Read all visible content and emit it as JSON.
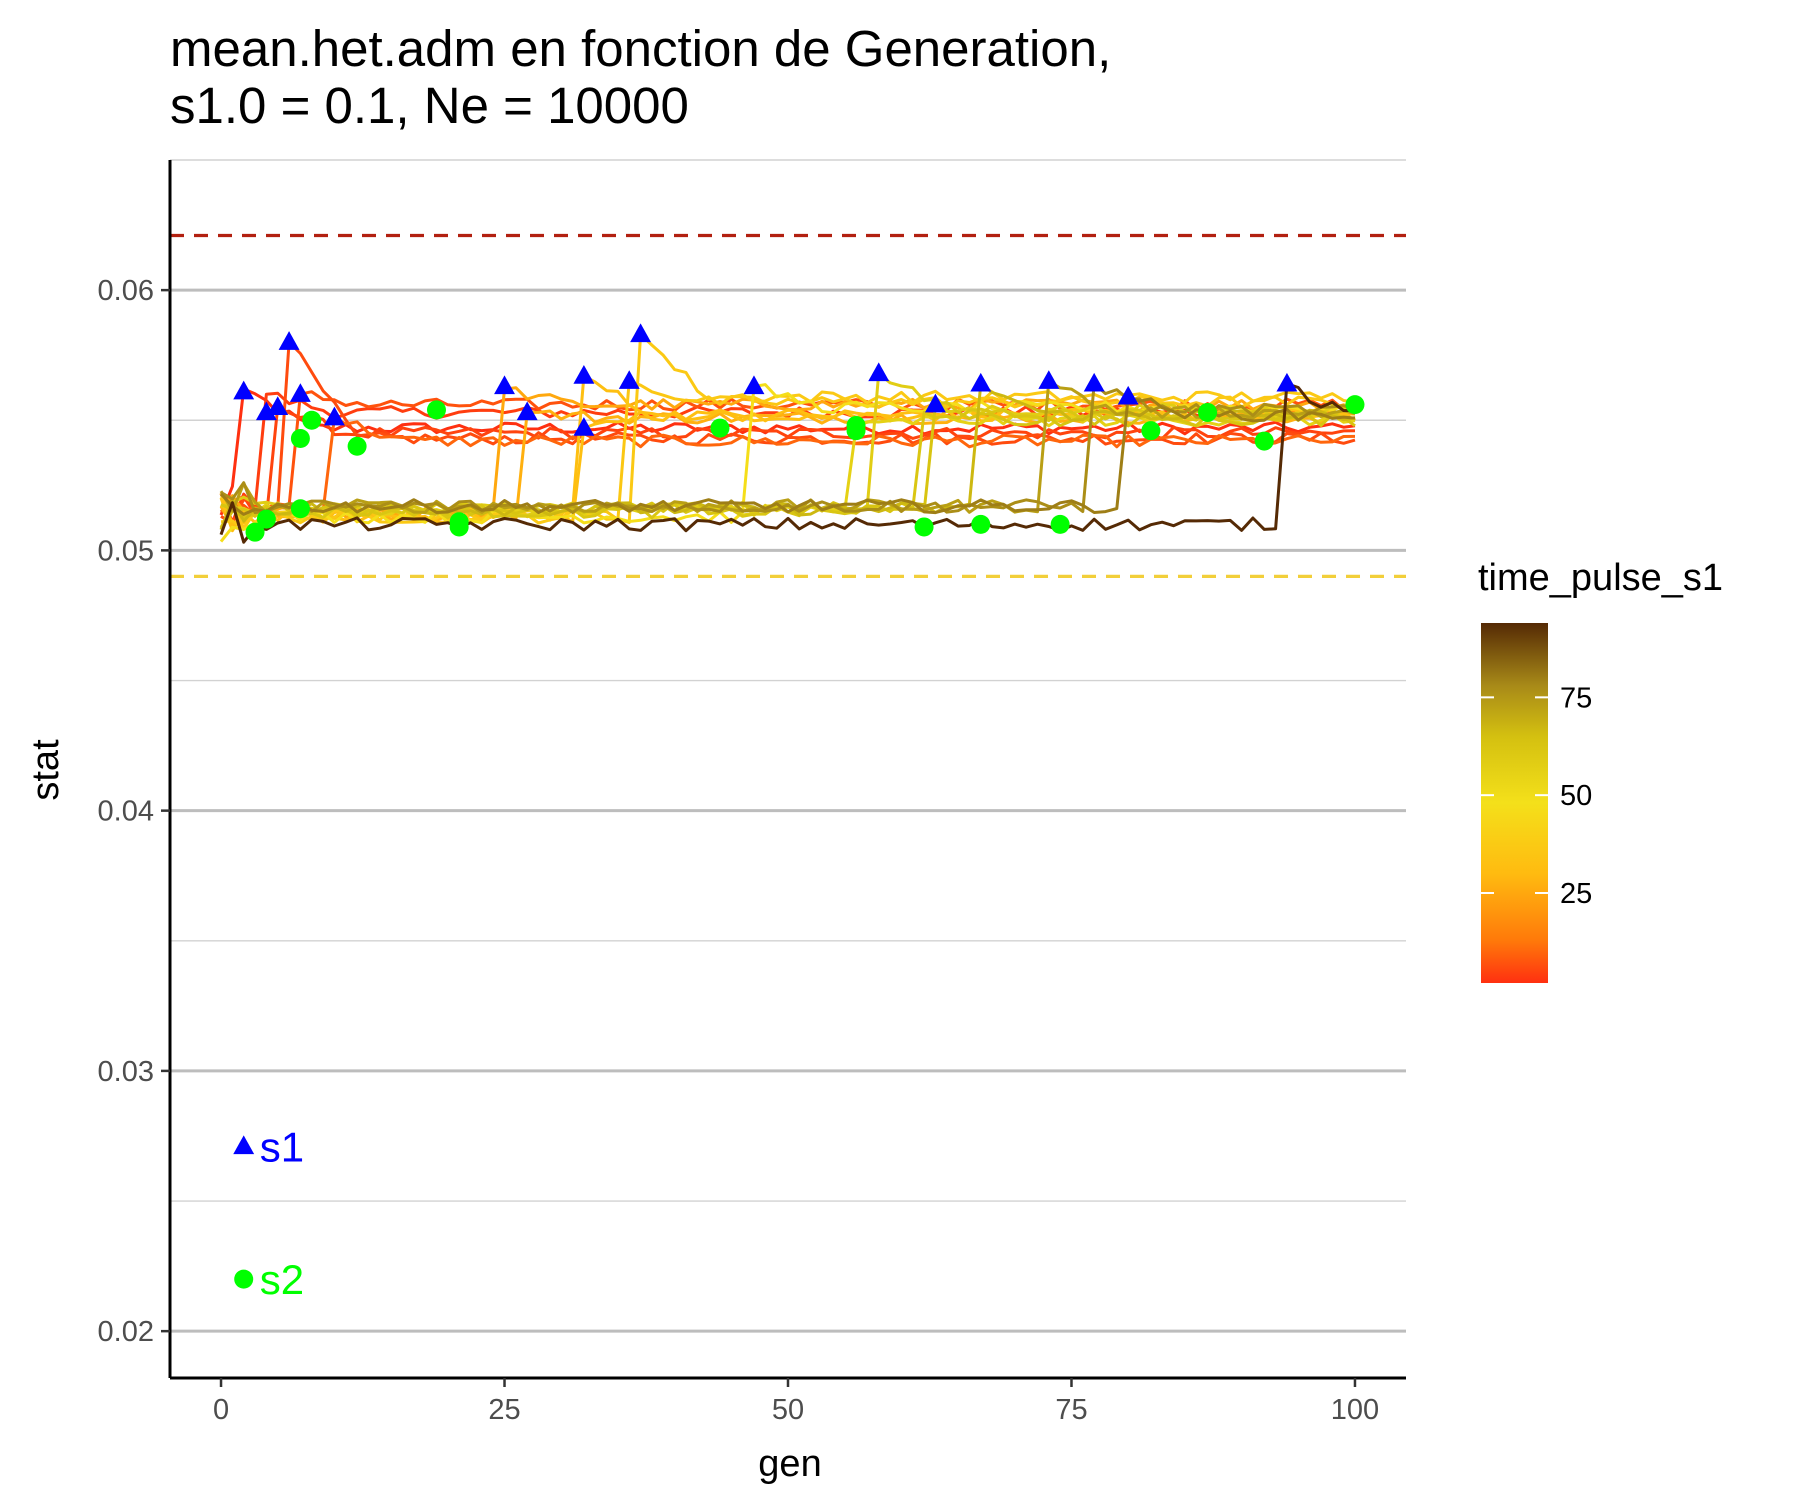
{
  "chart_data": {
    "type": "line",
    "title_lines": [
      "mean.het.adm en fonction de Generation,",
      "s1.0 = 0.1, Ne = 10000"
    ],
    "xlabel": "gen",
    "ylabel": "stat",
    "xlim": [
      -4.5,
      104.5
    ],
    "ylim": [
      0.0182,
      0.065
    ],
    "x_ticks": [
      0,
      25,
      50,
      75,
      100
    ],
    "x_tick_labels": [
      "0",
      "25",
      "50",
      "75",
      "100"
    ],
    "y_ticks": [
      0.02,
      0.03,
      0.04,
      0.05,
      0.06
    ],
    "y_tick_labels": [
      "0.02",
      "0.03",
      "0.04",
      "0.05",
      "0.06"
    ],
    "y_minor_ticks": [
      0.025,
      0.035,
      0.045,
      0.055,
      0.065
    ],
    "grid": "horizontal",
    "color_variable": "time_pulse_s1",
    "color_scale": {
      "title": "time_pulse_s1",
      "range": [
        2,
        94
      ],
      "ticks": [
        25,
        50,
        75
      ],
      "tick_labels": [
        "25",
        "50",
        "75"
      ],
      "stops": [
        {
          "v": 2,
          "color": "#ff3010"
        },
        {
          "v": 13,
          "color": "#ff7a0a"
        },
        {
          "v": 30,
          "color": "#ffbb10"
        },
        {
          "v": 48,
          "color": "#f4e01a"
        },
        {
          "v": 65,
          "color": "#d4c010"
        },
        {
          "v": 78,
          "color": "#a88a18"
        },
        {
          "v": 94,
          "color": "#552a05"
        }
      ]
    },
    "reference_lines": [
      {
        "y": 0.0621,
        "color": "#b22010",
        "style": "dashed"
      },
      {
        "y": 0.049,
        "color": "#f2cf3a",
        "style": "dashed"
      }
    ],
    "series": [
      {
        "time_pulse_s1": 2,
        "time_pulse_s2": 3,
        "base": 0.0516,
        "jump_gen": 2,
        "upper": 0.0562,
        "end": 0.0547
      },
      {
        "time_pulse_s1": 4,
        "time_pulse_s2": 4,
        "base": 0.0517,
        "jump_gen": 4,
        "upper": 0.056,
        "end": 0.0553
      },
      {
        "time_pulse_s1": 5,
        "time_pulse_s2": 7,
        "base": 0.0515,
        "jump_gen": 5,
        "upper": 0.0555,
        "end": 0.0545
      },
      {
        "time_pulse_s1": 6,
        "time_pulse_s2": 8,
        "base": 0.0518,
        "jump_gen": 6,
        "upper": 0.058,
        "end": 0.0543
      },
      {
        "time_pulse_s1": 7,
        "time_pulse_s2": 7,
        "base": 0.0516,
        "jump_gen": 7,
        "upper": 0.056,
        "end": 0.0556
      },
      {
        "time_pulse_s1": 10,
        "time_pulse_s2": 12,
        "base": 0.0516,
        "jump_gen": 10,
        "upper": 0.0551,
        "end": 0.0542
      },
      {
        "time_pulse_s1": 25,
        "time_pulse_s2": 21,
        "base": 0.0515,
        "jump_gen": 25,
        "upper": 0.0562,
        "end": 0.0556
      },
      {
        "time_pulse_s1": 27,
        "time_pulse_s2": 21,
        "base": 0.0514,
        "jump_gen": 27,
        "upper": 0.0553,
        "end": 0.0551
      },
      {
        "time_pulse_s1": 32,
        "time_pulse_s2": 19,
        "base": 0.0514,
        "jump_gen": 32,
        "upper": 0.0567,
        "end": 0.0552
      },
      {
        "time_pulse_s1": 32,
        "time_pulse_s2": 32,
        "base": 0.0513,
        "jump_gen": 32,
        "upper": 0.0547,
        "end": 0.0552
      },
      {
        "time_pulse_s1": 36,
        "time_pulse_s2": 36,
        "base": 0.0514,
        "jump_gen": 36,
        "upper": 0.0565,
        "end": 0.0557
      },
      {
        "time_pulse_s1": 37,
        "time_pulse_s2": 44,
        "base": 0.0513,
        "jump_gen": 37,
        "upper": 0.0583,
        "end": 0.0559
      },
      {
        "time_pulse_s1": 47,
        "time_pulse_s2": 44,
        "base": 0.0513,
        "jump_gen": 47,
        "upper": 0.0563,
        "end": 0.0555
      },
      {
        "time_pulse_s1": 56,
        "time_pulse_s2": 56,
        "base": 0.0516,
        "jump_gen": 56,
        "upper": 0.0547,
        "end": 0.055
      },
      {
        "time_pulse_s1": 58,
        "time_pulse_s2": 56,
        "base": 0.0516,
        "jump_gen": 58,
        "upper": 0.0568,
        "end": 0.0554
      },
      {
        "time_pulse_s1": 62,
        "time_pulse_s2": 62,
        "base": 0.0515,
        "jump_gen": 62,
        "upper": 0.0553,
        "end": 0.0552
      },
      {
        "time_pulse_s1": 63,
        "time_pulse_s2": 67,
        "base": 0.0516,
        "jump_gen": 63,
        "upper": 0.0556,
        "end": 0.055
      },
      {
        "time_pulse_s1": 67,
        "time_pulse_s2": 67,
        "base": 0.0516,
        "jump_gen": 67,
        "upper": 0.0564,
        "end": 0.0552
      },
      {
        "time_pulse_s1": 73,
        "time_pulse_s2": 74,
        "base": 0.0517,
        "jump_gen": 73,
        "upper": 0.0565,
        "end": 0.0553
      },
      {
        "time_pulse_s1": 77,
        "time_pulse_s2": 82,
        "base": 0.0517,
        "jump_gen": 77,
        "upper": 0.0564,
        "end": 0.0554
      },
      {
        "time_pulse_s1": 80,
        "time_pulse_s2": 87,
        "base": 0.0517,
        "jump_gen": 80,
        "upper": 0.0559,
        "end": 0.0552
      },
      {
        "time_pulse_s1": 94,
        "time_pulse_s2": 92,
        "base": 0.051,
        "jump_gen": 94,
        "upper": 0.0564,
        "end": 0.0555
      }
    ],
    "s1_markers": {
      "shape": "triangle",
      "color": "#0000ff",
      "points": [
        [
          2,
          0.0561
        ],
        [
          4,
          0.0553
        ],
        [
          5,
          0.0555
        ],
        [
          6,
          0.058
        ],
        [
          7,
          0.056
        ],
        [
          10,
          0.0551
        ],
        [
          25,
          0.0563
        ],
        [
          27,
          0.0553
        ],
        [
          32,
          0.0567
        ],
        [
          32,
          0.0547
        ],
        [
          36,
          0.0565
        ],
        [
          37,
          0.0583
        ],
        [
          47,
          0.0563
        ],
        [
          58,
          0.0568
        ],
        [
          63,
          0.0556
        ],
        [
          67,
          0.0564
        ],
        [
          73,
          0.0565
        ],
        [
          77,
          0.0564
        ],
        [
          80,
          0.0559
        ],
        [
          94,
          0.0564
        ]
      ]
    },
    "s2_markers": {
      "shape": "circle",
      "color": "#00ff00",
      "points": [
        [
          3,
          0.0507
        ],
        [
          4,
          0.0512
        ],
        [
          7,
          0.0543
        ],
        [
          7,
          0.0516
        ],
        [
          8,
          0.055
        ],
        [
          12,
          0.054
        ],
        [
          19,
          0.0554
        ],
        [
          21,
          0.0509
        ],
        [
          21,
          0.0511
        ],
        [
          44,
          0.0547
        ],
        [
          56,
          0.0546
        ],
        [
          56,
          0.0548
        ],
        [
          62,
          0.0509
        ],
        [
          67,
          0.051
        ],
        [
          74,
          0.051
        ],
        [
          82,
          0.0546
        ],
        [
          87,
          0.0553
        ],
        [
          92,
          0.0542
        ],
        [
          100,
          0.0556
        ]
      ]
    },
    "annotations": [
      {
        "label": "s1",
        "x": 2,
        "y": 0.0271,
        "shape": "triangle",
        "color": "#0000ff"
      },
      {
        "label": "s2",
        "x": 2,
        "y": 0.022,
        "shape": "circle",
        "color": "#00ff00"
      }
    ]
  }
}
